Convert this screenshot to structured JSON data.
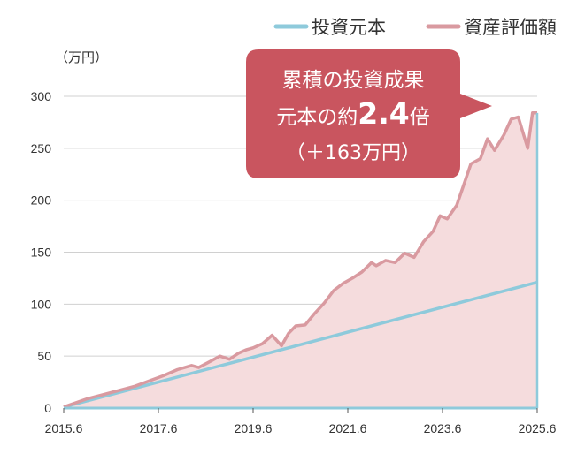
{
  "chart_data": {
    "type": "area",
    "ylabel": "（万円）",
    "ylim": [
      0,
      300
    ],
    "y_ticks": [
      0,
      50,
      100,
      150,
      200,
      250,
      300
    ],
    "xlim": [
      2015.5,
      2025.5
    ],
    "x_ticks": [
      {
        "value": 2015.5,
        "label": "2015.6"
      },
      {
        "value": 2017.5,
        "label": "2017.6"
      },
      {
        "value": 2019.5,
        "label": "2019.6"
      },
      {
        "value": 2021.5,
        "label": "2021.6"
      },
      {
        "value": 2023.5,
        "label": "2023.6"
      },
      {
        "value": 2025.5,
        "label": "2025.6"
      }
    ],
    "grid": "horizontal",
    "legend_position": "top-right",
    "series": [
      {
        "name": "投資元本",
        "color": "#8ecadb",
        "fill": "#daeff5",
        "x": [
          2015.5,
          2025.5
        ],
        "values": [
          1,
          121
        ]
      },
      {
        "name": "資産評価額",
        "color": "#d99aa0",
        "fill": "#f5dcdd",
        "x": [
          2015.5,
          2016.0,
          2016.5,
          2017.0,
          2017.3,
          2017.6,
          2017.9,
          2018.2,
          2018.35,
          2018.6,
          2018.8,
          2019.0,
          2019.2,
          2019.35,
          2019.5,
          2019.7,
          2019.9,
          2020.1,
          2020.25,
          2020.4,
          2020.6,
          2020.8,
          2021.0,
          2021.2,
          2021.4,
          2021.6,
          2021.8,
          2022.0,
          2022.1,
          2022.3,
          2022.5,
          2022.7,
          2022.9,
          2023.1,
          2023.3,
          2023.45,
          2023.6,
          2023.8,
          2023.95,
          2024.1,
          2024.3,
          2024.45,
          2024.6,
          2024.8,
          2024.95,
          2025.1,
          2025.3,
          2025.4,
          2025.5
        ],
        "values": [
          1,
          9,
          15,
          21,
          26,
          31,
          37,
          41,
          39,
          45,
          50,
          47,
          53,
          56,
          58,
          62,
          70,
          60,
          72,
          79,
          80,
          91,
          101,
          113,
          120,
          125,
          131,
          140,
          137,
          142,
          140,
          149,
          145,
          160,
          170,
          185,
          182,
          195,
          215,
          235,
          240,
          259,
          248,
          263,
          278,
          280,
          250,
          284,
          284
        ]
      }
    ]
  },
  "callout": {
    "line1": "累積の投資成果",
    "line2_prefix": "元本の約",
    "line2_value": "2.4",
    "line2_suffix": "倍",
    "line3": "（＋163万円）",
    "color": "#c9555f"
  }
}
